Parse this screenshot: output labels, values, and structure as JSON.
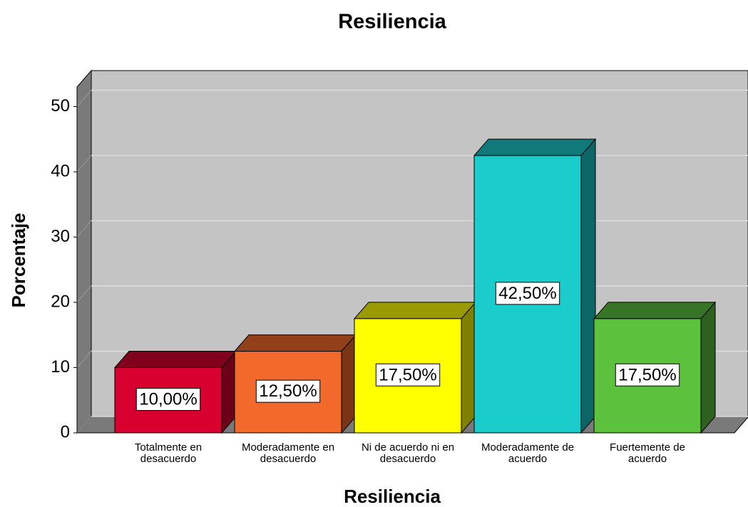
{
  "chart_data": {
    "type": "bar3d",
    "title": "Resiliencia",
    "x_label": "Resiliencia",
    "y_label": "Porcentaje",
    "categories": [
      "Totalmente en desacuerdo",
      "Moderadamente en desacuerdo",
      "Ni de acuerdo ni en desacuerdo",
      "Moderadamente de acuerdo",
      "Fuertemente de acuerdo"
    ],
    "values": [
      10,
      12.5,
      17.5,
      42.5,
      17.5
    ],
    "value_labels": [
      "10,00%",
      "12,50%",
      "17,50%",
      "42,50%",
      "17,50%"
    ],
    "colors": [
      "#d7002e",
      "#f26a2b",
      "#ffff00",
      "#1acccc",
      "#5cc23d"
    ],
    "ylim": [
      0,
      53
    ],
    "yticks": [
      0,
      10,
      20,
      30,
      40,
      50
    ],
    "grid": true
  }
}
